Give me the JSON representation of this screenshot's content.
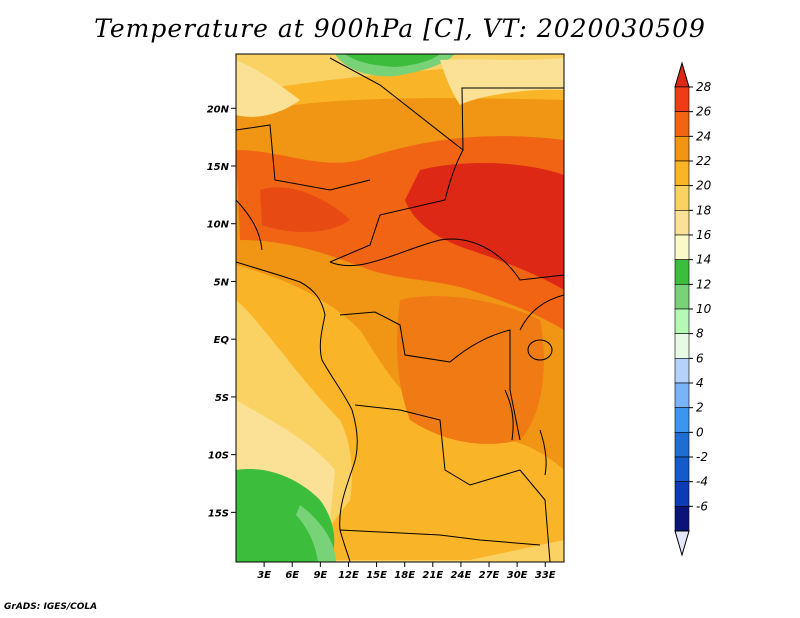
{
  "title": "Temperature at 900hPa [C], VT: 2020030509",
  "credit": "GrADS: IGES/COLA",
  "map": {
    "lon_range": [
      0,
      35
    ],
    "lat_range": [
      -19.3,
      24.7
    ],
    "lat_ticks": [
      {
        "value": 20,
        "label": "20N"
      },
      {
        "value": 15,
        "label": "15N"
      },
      {
        "value": 10,
        "label": "10N"
      },
      {
        "value": 5,
        "label": "5N"
      },
      {
        "value": 0,
        "label": "EQ"
      },
      {
        "value": -5,
        "label": "5S"
      },
      {
        "value": -10,
        "label": "10S"
      },
      {
        "value": -15,
        "label": "15S"
      }
    ],
    "lon_ticks": [
      {
        "value": 3,
        "label": "3E"
      },
      {
        "value": 6,
        "label": "6E"
      },
      {
        "value": 9,
        "label": "9E"
      },
      {
        "value": 12,
        "label": "12E"
      },
      {
        "value": 15,
        "label": "15E"
      },
      {
        "value": 18,
        "label": "18E"
      },
      {
        "value": 21,
        "label": "21E"
      },
      {
        "value": 24,
        "label": "24E"
      },
      {
        "value": 27,
        "label": "27E"
      },
      {
        "value": 30,
        "label": "30E"
      },
      {
        "value": 33,
        "label": "33E"
      }
    ]
  },
  "colorbar": {
    "levels": [
      "28",
      "26",
      "24",
      "22",
      "20",
      "18",
      "16",
      "14",
      "12",
      "10",
      "8",
      "6",
      "4",
      "2",
      "0",
      "-2",
      "-4",
      "-6"
    ],
    "colors": [
      "#f03c14",
      "#f06414",
      "#f09614",
      "#fab428",
      "#fad264",
      "#fae196",
      "#fafac8",
      "#3cbe3c",
      "#78d278",
      "#b4fab4",
      "#e6fae6",
      "#b4d2fa",
      "#78b4fa",
      "#3c96f0",
      "#1e6ed2",
      "#145ac8",
      "#0a3cb4",
      "#0a1478"
    ],
    "top_color": "#dc2814",
    "bottom_color": "#e6e6fa"
  }
}
